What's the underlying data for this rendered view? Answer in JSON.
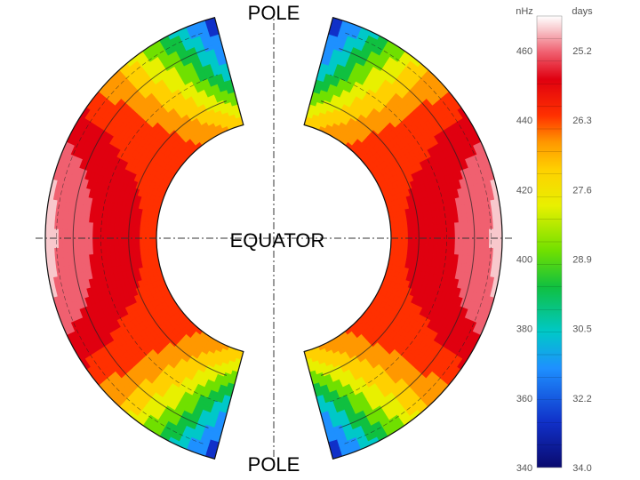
{
  "labels": {
    "pole_top": "POLE",
    "pole_bottom": "POLE",
    "equator": "EQUATOR"
  },
  "chart_data": {
    "type": "heatmap",
    "title": "",
    "description_units": {
      "left": "nHz",
      "right": "days"
    },
    "colorbar": {
      "left_label": "nHz",
      "right_label": "days",
      "left_ticks": [
        460,
        440,
        420,
        400,
        380,
        360,
        340
      ],
      "right_ticks": [
        "25.2",
        "26.3",
        "27.6",
        "28.9",
        "30.5",
        "32.2",
        "34.0"
      ],
      "range_nhz": [
        340,
        470
      ],
      "colors": [
        "#0a0a6e",
        "#1030c8",
        "#1e90ff",
        "#00c8c8",
        "#10c040",
        "#70e000",
        "#e8f000",
        "#ffd000",
        "#ff9800",
        "#ff3000",
        "#e00010",
        "#f06070",
        "#f8c8cc",
        "#ffffff"
      ]
    },
    "rotation_profile_nhz": [
      {
        "latitude_deg": 0,
        "surface": 455,
        "mid": 440,
        "inner": 430
      },
      {
        "latitude_deg": 15,
        "surface": 452,
        "mid": 438,
        "inner": 430
      },
      {
        "latitude_deg": 30,
        "surface": 438,
        "mid": 432,
        "inner": 430
      },
      {
        "latitude_deg": 45,
        "surface": 418,
        "mid": 422,
        "inner": 428
      },
      {
        "latitude_deg": 60,
        "surface": 385,
        "mid": 400,
        "inner": 420
      },
      {
        "latitude_deg": 75,
        "surface": 350,
        "mid": 368,
        "inner": 410
      }
    ],
    "radius_range_fraction": [
      0.5,
      1.0
    ],
    "latitude_range_deg": [
      -75,
      75
    ]
  }
}
